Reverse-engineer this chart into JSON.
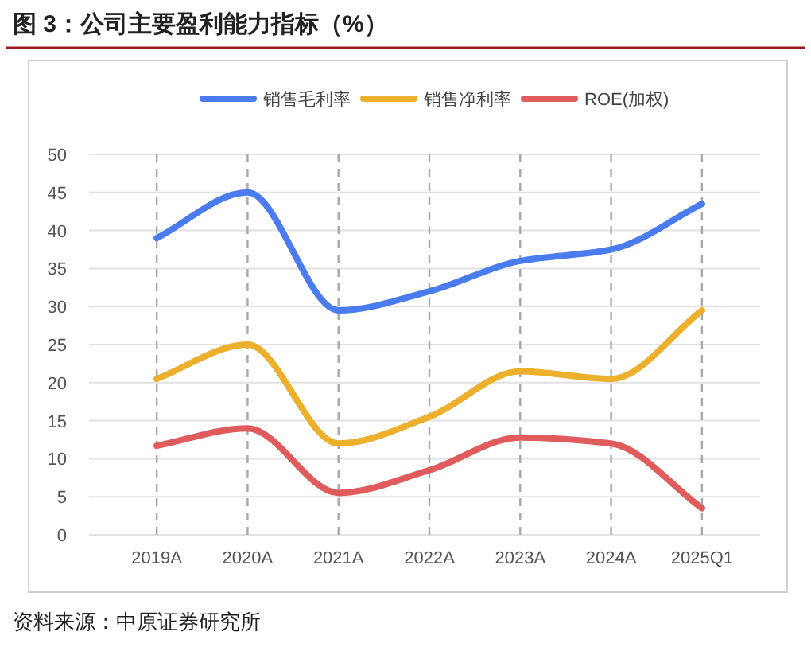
{
  "chart_data": {
    "type": "line",
    "title": "图 3：公司主要盈利能力指标（%）",
    "categories": [
      "2019A",
      "2020A",
      "2021A",
      "2022A",
      "2023A",
      "2024A",
      "2025Q1"
    ],
    "series": [
      {
        "name": "销售毛利率",
        "color": "#4a7cf0",
        "values": [
          39,
          45,
          29.5,
          32,
          36,
          37.5,
          43.5
        ]
      },
      {
        "name": "销售净利率",
        "color": "#ecb02d",
        "values": [
          20.5,
          25,
          12,
          15.5,
          21.5,
          20.5,
          29.5
        ]
      },
      {
        "name": "ROE(加权)",
        "color": "#e05c5c",
        "values": [
          11.7,
          14,
          5.5,
          8.5,
          12.8,
          12,
          3.5
        ]
      }
    ],
    "ylim": [
      0,
      50
    ],
    "yticks": [
      0,
      5,
      10,
      15,
      20,
      25,
      30,
      35,
      40,
      45,
      50
    ],
    "grid": true,
    "legend": "top",
    "marker": "none",
    "line_style": "solid",
    "annotations": [
      "资料来源：中原证券研究所"
    ]
  }
}
